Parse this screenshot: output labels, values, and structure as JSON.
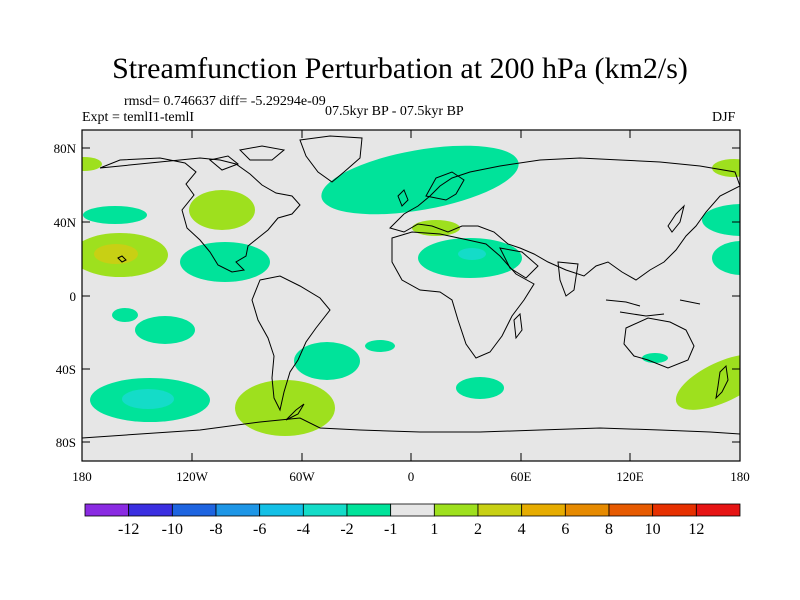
{
  "title": "Streamfunction Perturbation at 200 hPa (km2/s)",
  "stats": "rmsd= 0.746637 diff= -5.29294e-09",
  "expt": "Expt = temlI1-temlI",
  "period": "07.5kyr BP - 07.5kyr BP",
  "season": "DJF",
  "lat_labels": [
    "80N",
    "40N",
    "0",
    "40S",
    "80S"
  ],
  "lon_labels": [
    "180",
    "120W",
    "60W",
    "0",
    "60E",
    "120E",
    "180"
  ],
  "colorbar": {
    "labels": [
      "-12",
      "-10",
      "-8",
      "-6",
      "-4",
      "-2",
      "-1",
      "1",
      "2",
      "4",
      "6",
      "8",
      "10",
      "12"
    ],
    "colors": [
      "#8a2be2",
      "#3a2ee0",
      "#1e64e0",
      "#1e96e6",
      "#14c0e6",
      "#14dcc8",
      "#00e39a",
      "#e6e6e6",
      "#9ee01e",
      "#c8d014",
      "#e6ac00",
      "#e68a00",
      "#e65a00",
      "#e63000",
      "#e61414"
    ]
  },
  "colors": {
    "background": "#e6e6e6",
    "neg1": "#00e39a",
    "neg2": "#14dcc8",
    "pos1": "#9ee01e",
    "pos2": "#c8d014"
  }
}
